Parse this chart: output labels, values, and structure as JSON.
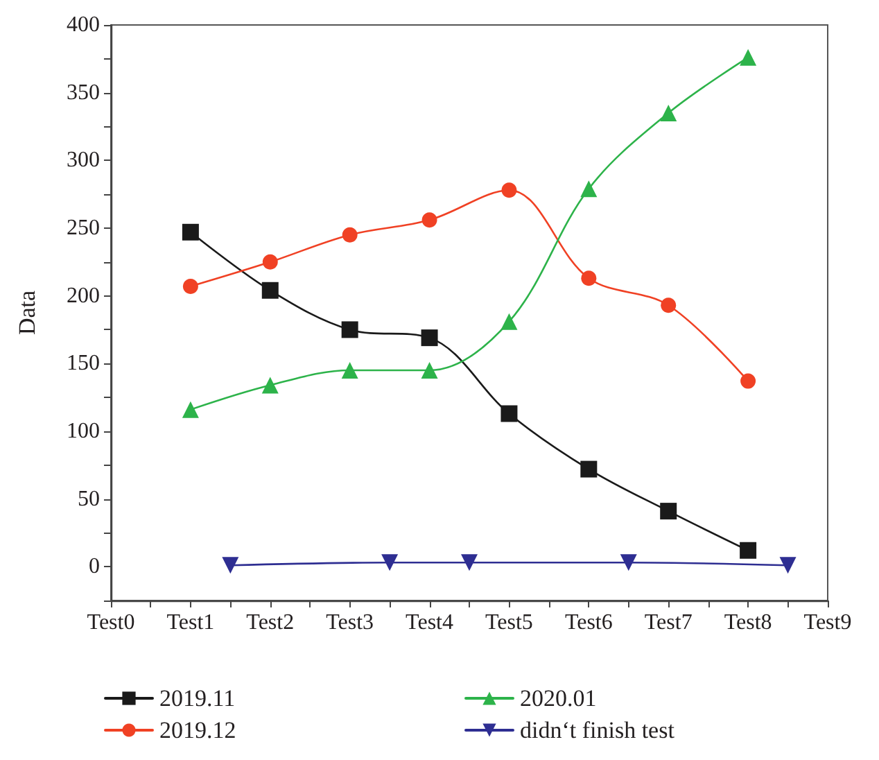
{
  "chart_data": {
    "type": "line",
    "ylabel": "Data",
    "categories": [
      "Test0",
      null,
      "Test1",
      null,
      "Test2",
      null,
      "Test3",
      null,
      "Test4",
      null,
      "Test5",
      null,
      "Test6",
      null,
      "Test7",
      null,
      "Test8",
      null,
      "Test9"
    ],
    "ylim": [
      -25,
      400
    ],
    "yticks": [
      {
        "value": -25,
        "label": null
      },
      0,
      {
        "value": 25,
        "label": null
      },
      50,
      {
        "value": 75,
        "label": null
      },
      100,
      {
        "value": 125,
        "label": null
      },
      150,
      {
        "value": 175,
        "label": null
      },
      200,
      {
        "value": 225,
        "label": null
      },
      250,
      {
        "value": 275,
        "label": null
      },
      300,
      {
        "value": 325,
        "label": null
      },
      350,
      {
        "value": 375,
        "label": null
      },
      400
    ],
    "legend": "bottom",
    "series": [
      {
        "name": "2019.11",
        "color": "#1a1a1a",
        "marker": "square",
        "values": [
          null,
          null,
          247,
          null,
          204,
          null,
          175,
          null,
          169,
          null,
          113,
          null,
          72,
          null,
          41,
          null,
          12,
          null,
          null
        ]
      },
      {
        "name": "2019.12",
        "color": "#f04124",
        "marker": "circle",
        "values": [
          null,
          null,
          207,
          null,
          225,
          null,
          245,
          null,
          256,
          null,
          278,
          null,
          213,
          null,
          193,
          null,
          137,
          null,
          null
        ]
      },
      {
        "name": "2020.01",
        "color": "#2db34a",
        "marker": "triangle",
        "values": [
          null,
          null,
          116,
          null,
          134,
          null,
          145,
          null,
          145,
          null,
          181,
          null,
          279,
          null,
          335,
          null,
          376,
          null,
          null
        ]
      },
      {
        "name": "didn‘t finish test",
        "color": "#2e2e92",
        "marker": "triangle_down",
        "values": [
          null,
          null,
          null,
          1,
          null,
          null,
          null,
          3,
          null,
          3,
          null,
          null,
          null,
          3,
          null,
          null,
          null,
          1,
          null
        ]
      }
    ]
  }
}
